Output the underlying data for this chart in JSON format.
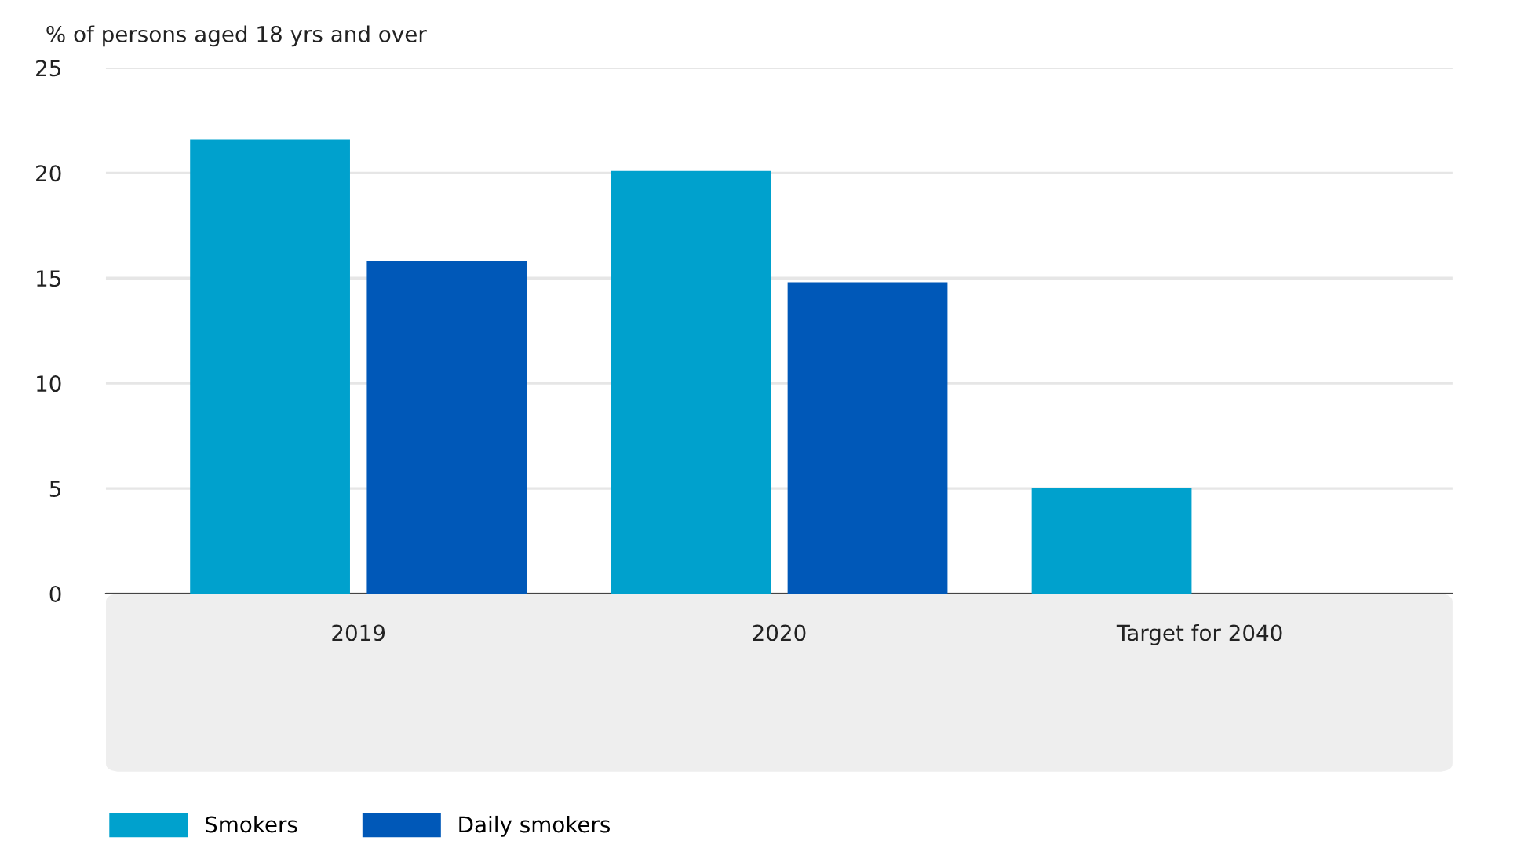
{
  "chart_data": {
    "type": "bar",
    "ylabel": "% of persons aged 18 yrs and over",
    "categories": [
      "2019",
      "2020",
      "Target for 2040"
    ],
    "series": [
      {
        "name": "Smokers",
        "color": "#00a1cd",
        "values": [
          21.6,
          20.1,
          5
        ]
      },
      {
        "name": "Daily smokers",
        "color": "#0058b8",
        "values": [
          15.8,
          14.8,
          null
        ]
      }
    ],
    "ylim": [
      0,
      25
    ],
    "yticks": [
      0,
      5,
      10,
      15,
      20,
      25
    ],
    "grid": "y",
    "legend": "bottom left"
  }
}
